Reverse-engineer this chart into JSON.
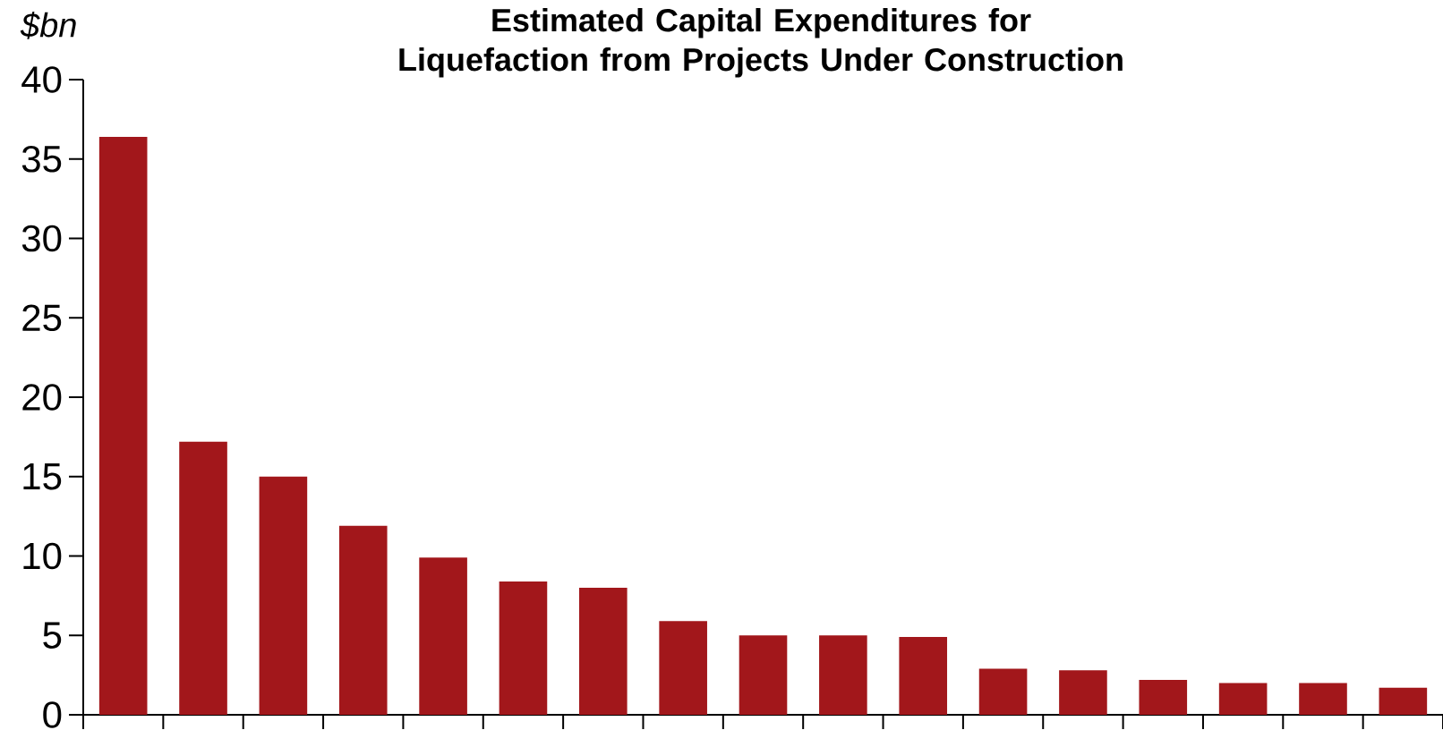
{
  "chart_data": {
    "type": "bar",
    "title": "Estimated Capital Expenditures for Liquefaction from Projects Under Construction",
    "ylabel": "$bn",
    "categories": [
      null,
      null,
      null,
      null,
      null,
      null,
      null,
      null,
      null,
      null,
      null,
      null,
      null,
      null,
      null,
      null,
      null
    ],
    "values": [
      36.4,
      17.2,
      15.0,
      11.9,
      9.9,
      8.4,
      8.0,
      5.9,
      5.0,
      5.0,
      4.9,
      2.9,
      2.8,
      2.2,
      2.0,
      2.0,
      1.7
    ],
    "color": "#a2171b",
    "ylim": [
      0,
      40
    ],
    "yticks": [
      0,
      5,
      10,
      15,
      20,
      25,
      30,
      35,
      40
    ]
  }
}
